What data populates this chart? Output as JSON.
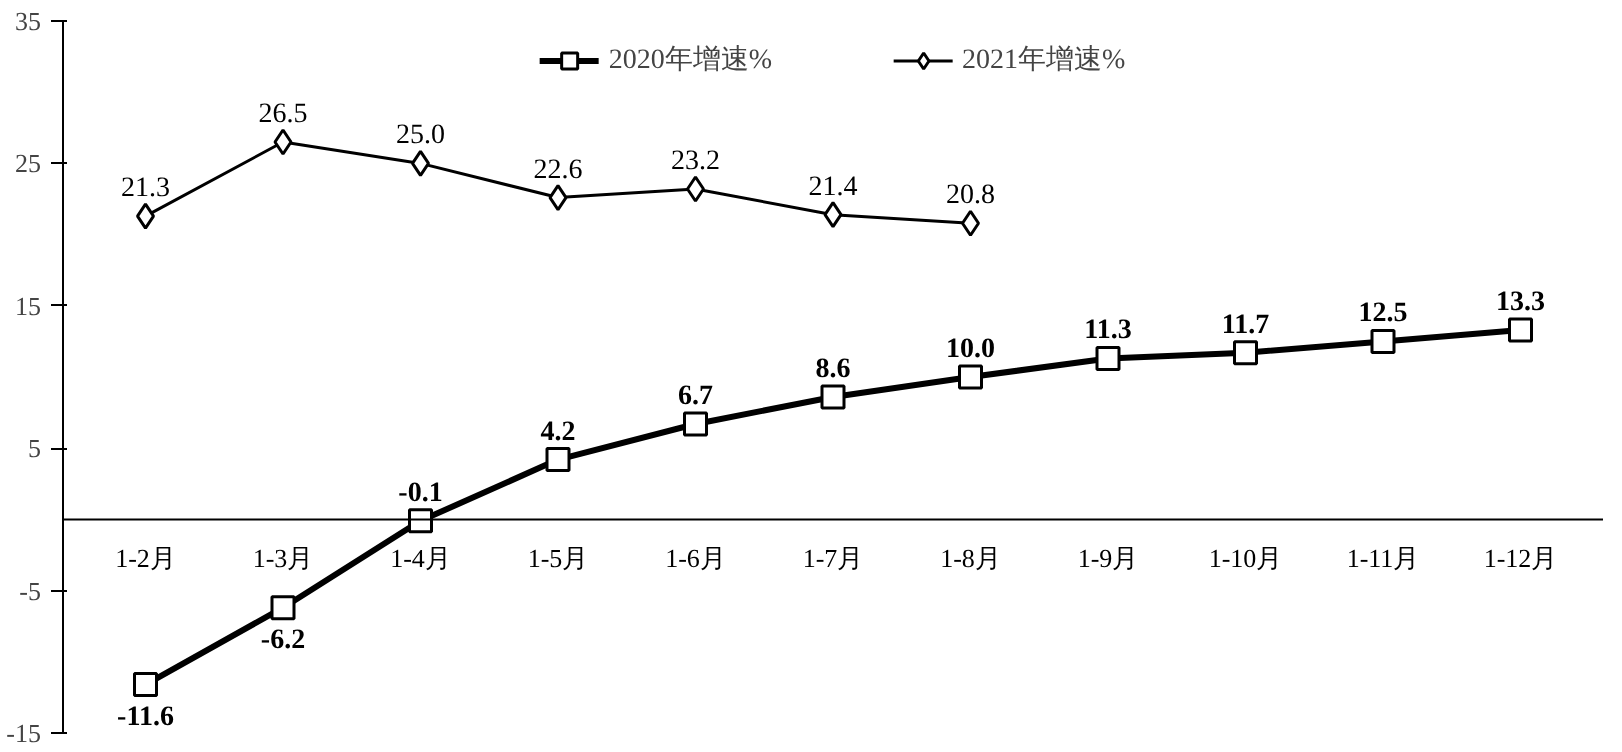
{
  "chart_data": {
    "type": "line",
    "categories": [
      "1-2月",
      "1-3月",
      "1-4月",
      "1-5月",
      "1-6月",
      "1-7月",
      "1-8月",
      "1-9月",
      "1-10月",
      "1-11月",
      "1-12月"
    ],
    "series": [
      {
        "name": "2020年增速%",
        "color": "#000000",
        "marker": "square",
        "values": [
          -11.6,
          -6.2,
          -0.1,
          4.2,
          6.7,
          8.6,
          10.0,
          11.3,
          11.7,
          12.5,
          13.3
        ],
        "value_labels": [
          "-11.6",
          "-6.2",
          "-0.1",
          "4.2",
          "6.7",
          "8.6",
          "10.0",
          "11.3",
          "11.7",
          "12.5",
          "13.3"
        ]
      },
      {
        "name": "2021年增速%",
        "color": "#000000",
        "marker": "diamond",
        "values": [
          21.3,
          26.5,
          25.0,
          22.6,
          23.2,
          21.4,
          20.8,
          null,
          null,
          null,
          null
        ],
        "value_labels": [
          "21.3",
          "26.5",
          "25.0",
          "22.6",
          "23.2",
          "21.4",
          "20.8",
          null,
          null,
          null,
          null
        ]
      }
    ],
    "ylim": [
      -15,
      35
    ],
    "yticks": [
      35,
      25,
      15,
      5,
      -5,
      -15
    ],
    "grid": false,
    "legend": "top"
  }
}
